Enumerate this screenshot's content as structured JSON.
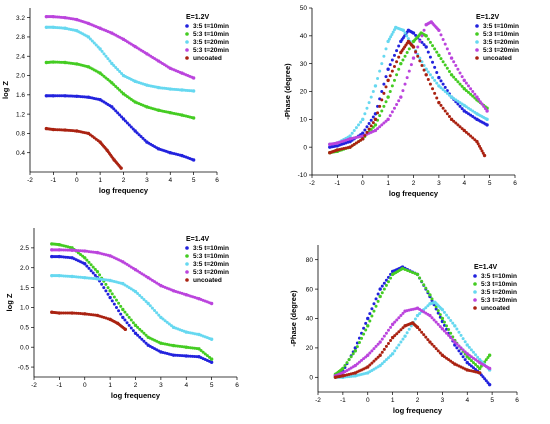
{
  "chart_data": [
    {
      "type": "scatter",
      "xlabel": "log frequency",
      "ylabel": "log Z",
      "xlim": [
        -2,
        6
      ],
      "ylim": [
        0,
        3.4
      ],
      "xticks": [
        "-2",
        "-1",
        "0",
        "1",
        "2",
        "3",
        "4",
        "5",
        "6"
      ],
      "yticks": [
        "0.4",
        "0.8",
        "1.2",
        "1.6",
        "2.0",
        "2.4",
        "2.8",
        "3.2"
      ],
      "legend_title": "E=1.2V",
      "legend_position": "top-right",
      "series": [
        {
          "name": "3:5 t=10min",
          "color": "#2222dd",
          "x": [
            -1.3,
            -1,
            -0.5,
            0,
            0.5,
            1,
            1.5,
            2,
            2.5,
            3,
            3.5,
            4,
            4.5,
            5
          ],
          "y": [
            1.58,
            1.58,
            1.58,
            1.57,
            1.55,
            1.5,
            1.35,
            1.1,
            0.85,
            0.62,
            0.48,
            0.4,
            0.34,
            0.25
          ]
        },
        {
          "name": "5:3 t=10min",
          "color": "#44cc22",
          "x": [
            -1.3,
            -1,
            -0.5,
            0,
            0.5,
            1,
            1.5,
            2,
            2.5,
            3,
            3.5,
            4,
            4.5,
            5
          ],
          "y": [
            2.27,
            2.28,
            2.27,
            2.24,
            2.18,
            2.05,
            1.85,
            1.62,
            1.45,
            1.35,
            1.28,
            1.23,
            1.18,
            1.12
          ]
        },
        {
          "name": "3:5 t=20min",
          "color": "#66d8f0",
          "x": [
            -1.3,
            -1,
            -0.5,
            0,
            0.5,
            1,
            1.5,
            2,
            2.5,
            3,
            3.5,
            4,
            4.5,
            5
          ],
          "y": [
            3.0,
            3.0,
            2.98,
            2.93,
            2.8,
            2.55,
            2.25,
            2.0,
            1.88,
            1.8,
            1.75,
            1.72,
            1.7,
            1.68
          ]
        },
        {
          "name": "5:3 t=20min",
          "color": "#bb44dd",
          "x": [
            -1.3,
            -1,
            -0.5,
            0,
            0.5,
            1,
            1.5,
            2,
            2.5,
            3,
            3.5,
            4,
            4.5,
            5
          ],
          "y": [
            3.22,
            3.22,
            3.2,
            3.16,
            3.08,
            2.98,
            2.88,
            2.75,
            2.6,
            2.45,
            2.3,
            2.15,
            2.05,
            1.95
          ]
        },
        {
          "name": "uncoated",
          "color": "#aa2211",
          "x": [
            -1.3,
            -1,
            -0.5,
            0,
            0.5,
            1,
            1.3,
            1.6,
            1.9
          ],
          "y": [
            0.9,
            0.88,
            0.87,
            0.85,
            0.8,
            0.62,
            0.45,
            0.25,
            0.08
          ]
        }
      ]
    },
    {
      "type": "scatter",
      "xlabel": "log frequency",
      "ylabel": "-Phase (degree)",
      "xlim": [
        -2,
        6
      ],
      "ylim": [
        -10,
        50
      ],
      "xticks": [
        "-2",
        "-1",
        "0",
        "1",
        "2",
        "3",
        "4",
        "5",
        "6"
      ],
      "yticks": [
        "-10",
        "0",
        "10",
        "20",
        "30",
        "40",
        "50"
      ],
      "legend_title": "E=1.2V",
      "legend_position": "top-right",
      "series": [
        {
          "name": "3:5 t=10min",
          "color": "#2222dd",
          "x": [
            -1.3,
            -1,
            -0.5,
            0,
            0.5,
            1,
            1.5,
            1.8,
            2,
            2.5,
            3,
            3.5,
            4,
            4.5,
            4.9
          ],
          "y": [
            0,
            0.5,
            2,
            5,
            12,
            28,
            38,
            42,
            41,
            36,
            25,
            18,
            13,
            10,
            8
          ]
        },
        {
          "name": "5:3 t=10min",
          "color": "#44cc22",
          "x": [
            -1.3,
            -1,
            -0.5,
            0,
            0.5,
            1,
            1.5,
            2,
            2.3,
            2.5,
            3,
            3.5,
            4,
            4.5,
            4.9
          ],
          "y": [
            -2,
            -1.5,
            0,
            3,
            8,
            18,
            30,
            38,
            41,
            40,
            33,
            26,
            21,
            17,
            14
          ]
        },
        {
          "name": "3:5 t=20min",
          "color": "#66d8f0",
          "x": [
            -1.3,
            -1,
            -0.5,
            0,
            0.5,
            1,
            1.3,
            1.6,
            2,
            2.5,
            3,
            3.5,
            4,
            4.5,
            4.9
          ],
          "y": [
            1,
            1.5,
            4,
            10,
            22,
            38,
            43,
            42,
            36,
            28,
            22,
            18,
            15,
            12,
            10
          ]
        },
        {
          "name": "5:3 t=20min",
          "color": "#bb44dd",
          "x": [
            -1.3,
            -1,
            -0.5,
            0,
            0.5,
            1,
            1.5,
            2,
            2.5,
            2.7,
            3,
            3.5,
            4,
            4.5,
            4.9
          ],
          "y": [
            1,
            1.5,
            3,
            4,
            6,
            10,
            18,
            32,
            44,
            45,
            42,
            32,
            24,
            18,
            13
          ]
        },
        {
          "name": "uncoated",
          "color": "#aa2211",
          "x": [
            -1.3,
            -1,
            -0.5,
            0,
            0.5,
            1,
            1.5,
            1.8,
            2,
            2.5,
            3,
            3.5,
            4,
            4.5,
            4.8
          ],
          "y": [
            -2,
            -1,
            0,
            3,
            10,
            24,
            34,
            38,
            36,
            26,
            16,
            10,
            6,
            2,
            -3
          ]
        }
      ]
    },
    {
      "type": "scatter",
      "xlabel": "log frequency",
      "ylabel": "log Z",
      "xlim": [
        -2,
        6
      ],
      "ylim": [
        -0.75,
        3.0
      ],
      "xticks": [
        "-2",
        "-1",
        "0",
        "1",
        "2",
        "3",
        "4",
        "5",
        "6"
      ],
      "yticks": [
        "-0.5",
        "0.0",
        "0.5",
        "1.0",
        "1.5",
        "2.0",
        "2.5"
      ],
      "legend_title": "E=1.4V",
      "legend_position": "top-right",
      "series": [
        {
          "name": "3:5 t=10min",
          "color": "#2222dd",
          "x": [
            -1.3,
            -1,
            -0.5,
            0,
            0.5,
            1,
            1.5,
            2,
            2.5,
            3,
            3.5,
            4,
            4.5,
            5
          ],
          "y": [
            2.28,
            2.28,
            2.25,
            2.1,
            1.75,
            1.25,
            0.75,
            0.35,
            0.05,
            -0.12,
            -0.2,
            -0.22,
            -0.24,
            -0.38
          ]
        },
        {
          "name": "5:3 t=10min",
          "color": "#44cc22",
          "x": [
            -1.3,
            -1,
            -0.5,
            0,
            0.5,
            1,
            1.5,
            2,
            2.5,
            3,
            3.5,
            4,
            4.5,
            5
          ],
          "y": [
            2.6,
            2.58,
            2.5,
            2.25,
            1.9,
            1.42,
            0.95,
            0.55,
            0.25,
            0.1,
            0.04,
            0.0,
            -0.04,
            -0.3
          ]
        },
        {
          "name": "3:5 t=20min",
          "color": "#66d8f0",
          "x": [
            -1.3,
            -1,
            -0.5,
            0,
            0.5,
            1,
            1.5,
            2,
            2.5,
            3,
            3.5,
            4,
            4.5,
            5
          ],
          "y": [
            1.8,
            1.8,
            1.78,
            1.75,
            1.72,
            1.68,
            1.6,
            1.4,
            1.1,
            0.75,
            0.5,
            0.38,
            0.32,
            0.2
          ]
        },
        {
          "name": "5:3 t=20min",
          "color": "#bb44dd",
          "x": [
            -1.3,
            -1,
            -0.5,
            0,
            0.5,
            1,
            1.5,
            2,
            2.5,
            3,
            3.5,
            4,
            4.5,
            5
          ],
          "y": [
            2.45,
            2.45,
            2.44,
            2.42,
            2.38,
            2.3,
            2.15,
            1.95,
            1.75,
            1.55,
            1.42,
            1.32,
            1.22,
            1.1
          ]
        },
        {
          "name": "uncoated",
          "color": "#aa2211",
          "x": [
            -1.3,
            -1,
            -0.5,
            0,
            0.5,
            1,
            1.3,
            1.6
          ],
          "y": [
            0.88,
            0.86,
            0.86,
            0.84,
            0.8,
            0.7,
            0.6,
            0.45
          ]
        }
      ]
    },
    {
      "type": "scatter",
      "xlabel": "log frequency",
      "ylabel": "-Phase (degree)",
      "xlim": [
        -2,
        6
      ],
      "ylim": [
        -10,
        90
      ],
      "xticks": [
        "-2",
        "-1",
        "0",
        "1",
        "2",
        "3",
        "4",
        "5",
        "6"
      ],
      "yticks": [
        "0",
        "20",
        "40",
        "60",
        "80"
      ],
      "legend_title": "E=1.4V",
      "legend_position": "top-right",
      "series": [
        {
          "name": "3:5 t=10min",
          "color": "#2222dd",
          "x": [
            -1.3,
            -1,
            -0.5,
            0,
            0.5,
            1,
            1.4,
            2,
            2.5,
            3,
            3.5,
            4,
            4.5,
            4.9
          ],
          "y": [
            1,
            4,
            20,
            40,
            60,
            72,
            75,
            70,
            55,
            38,
            22,
            10,
            3,
            -5
          ]
        },
        {
          "name": "5:3 t=10min",
          "color": "#44cc22",
          "x": [
            -1.3,
            -1,
            -0.5,
            0,
            0.5,
            1,
            1.4,
            2,
            2.5,
            3,
            3.5,
            4,
            4.5,
            4.9
          ],
          "y": [
            2,
            6,
            18,
            35,
            55,
            70,
            74,
            70,
            56,
            40,
            25,
            14,
            6,
            15
          ]
        },
        {
          "name": "3:5 t=20min",
          "color": "#66d8f0",
          "x": [
            -1.3,
            -1,
            -0.5,
            0,
            0.5,
            1,
            1.5,
            2,
            2.5,
            2.7,
            3,
            3.5,
            4,
            4.5,
            4.9
          ],
          "y": [
            0,
            0,
            1,
            3,
            8,
            16,
            28,
            42,
            50,
            51,
            46,
            35,
            22,
            12,
            5
          ]
        },
        {
          "name": "5:3 t=20min",
          "color": "#bb44dd",
          "x": [
            -1.3,
            -1,
            -0.5,
            0,
            0.5,
            1,
            1.5,
            2,
            2.5,
            3,
            3.5,
            4,
            4.5,
            4.9
          ],
          "y": [
            1,
            3,
            8,
            15,
            24,
            36,
            45,
            47,
            42,
            33,
            24,
            16,
            10,
            6
          ]
        },
        {
          "name": "uncoated",
          "color": "#aa2211",
          "x": [
            -1.3,
            -1,
            -0.5,
            0,
            0.5,
            1,
            1.5,
            1.8,
            2,
            2.5,
            3,
            3.5,
            4,
            4.5
          ],
          "y": [
            0,
            1,
            3,
            7,
            15,
            27,
            35,
            37,
            34,
            24,
            15,
            9,
            5,
            3
          ]
        }
      ]
    }
  ]
}
